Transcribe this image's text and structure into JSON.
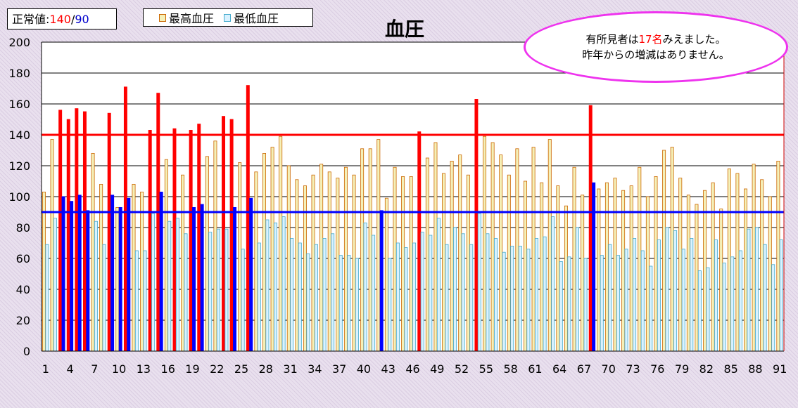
{
  "normal": {
    "label": "正常値:",
    "systolic": "140",
    "sep": "/",
    "diastolic": "90"
  },
  "legend": {
    "systolic": "最高血圧",
    "diastolic": "最低血圧"
  },
  "colors": {
    "normal_high": "#ff0000",
    "normal_low": "#0000ff",
    "systolic_bar": "#f5f0b8",
    "systolic_edge": "#cc6600",
    "diastolic_bar": "#d9f2ff",
    "diastolic_edge": "#44aacc",
    "note_border": "#ee33ee"
  },
  "note": {
    "line1_pre": "有所見者は",
    "count": "17名",
    "line1_post": "みえました。",
    "line2": "昨年からの増減はありません。"
  },
  "chart_data": {
    "type": "bar",
    "title": "血圧",
    "ylim": [
      0,
      200
    ],
    "yticks": [
      0,
      20,
      40,
      60,
      80,
      100,
      120,
      140,
      160,
      180,
      200
    ],
    "xtick_labels": [
      "1",
      "4",
      "7",
      "10",
      "13",
      "16",
      "19",
      "22",
      "25",
      "28",
      "31",
      "34",
      "37",
      "40",
      "43",
      "46",
      "49",
      "52",
      "55",
      "58",
      "61",
      "64",
      "67",
      "70",
      "73",
      "76",
      "79",
      "82",
      "85",
      "88",
      "91"
    ],
    "reference_lines": [
      {
        "name": "最高血圧 基準",
        "value": 140,
        "color": "#ff0000"
      },
      {
        "name": "最低血圧 基準",
        "value": 90,
        "color": "#0000ff"
      }
    ],
    "categories": [
      1,
      2,
      3,
      4,
      5,
      6,
      7,
      8,
      9,
      10,
      11,
      12,
      13,
      14,
      15,
      16,
      17,
      18,
      19,
      20,
      21,
      22,
      23,
      24,
      25,
      26,
      27,
      28,
      29,
      30,
      31,
      32,
      33,
      34,
      35,
      36,
      37,
      38,
      39,
      40,
      41,
      42,
      43,
      44,
      45,
      46,
      47,
      48,
      49,
      50,
      51,
      52,
      53,
      54,
      55,
      56,
      57,
      58,
      59,
      60,
      61,
      62,
      63,
      64,
      65,
      66,
      67,
      68,
      69,
      70,
      71,
      72,
      73,
      74,
      75,
      76,
      77,
      78,
      79,
      80,
      81,
      82,
      83,
      84,
      85,
      86,
      87,
      88,
      89,
      90,
      91
    ],
    "series": [
      {
        "name": "最高血圧",
        "values": [
          103,
          137,
          156,
          150,
          157,
          155,
          128,
          108,
          154,
          93,
          171,
          108,
          103,
          143,
          167,
          124,
          144,
          114,
          143,
          147,
          126,
          136,
          152,
          150,
          122,
          172,
          116,
          128,
          132,
          139,
          120,
          111,
          107,
          114,
          121,
          116,
          112,
          119,
          114,
          131,
          131,
          137,
          99,
          119,
          113,
          113,
          142,
          125,
          135,
          115,
          123,
          127,
          114,
          163,
          139,
          135,
          127,
          114,
          131,
          110,
          132,
          109,
          137,
          107,
          94,
          119,
          101,
          159,
          105,
          109,
          112,
          104,
          107,
          119,
          100,
          113,
          130,
          132,
          112,
          101,
          95,
          104,
          109,
          92,
          118,
          115,
          105,
          121,
          111,
          100,
          123
        ]
      },
      {
        "name": "最低血圧",
        "values": [
          69,
          86,
          100,
          97,
          101,
          91,
          84,
          69,
          101,
          93,
          99,
          65,
          65,
          89,
          103,
          84,
          86,
          76,
          93,
          95,
          77,
          79,
          79,
          93,
          66,
          99,
          70,
          85,
          83,
          87,
          73,
          70,
          63,
          69,
          73,
          76,
          62,
          62,
          60,
          83,
          75,
          91,
          60,
          70,
          67,
          70,
          77,
          75,
          86,
          69,
          80,
          76,
          69,
          89,
          76,
          73,
          64,
          68,
          68,
          66,
          73,
          74,
          87,
          58,
          61,
          80,
          60,
          109,
          62,
          69,
          62,
          66,
          73,
          65,
          55,
          72,
          80,
          78,
          66,
          73,
          52,
          54,
          72,
          57,
          61,
          65,
          79,
          80,
          69,
          56,
          72
        ]
      }
    ]
  }
}
